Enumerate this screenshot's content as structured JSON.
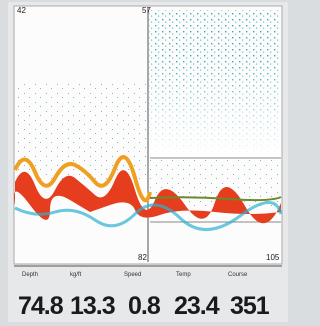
{
  "screen": {
    "left_top_depth": "42",
    "split_top_depth": "57",
    "split_bottom_depth": "82",
    "right_bottom_depth": "105",
    "readouts": [
      {
        "label": "Depth",
        "value": "74.8"
      },
      {
        "label": "kg/ft",
        "value": "13.3"
      },
      {
        "label": "Speed",
        "value": "0.8"
      },
      {
        "label": "Temp",
        "value": "23.4"
      },
      {
        "label": "Course",
        "value": "351"
      }
    ]
  }
}
